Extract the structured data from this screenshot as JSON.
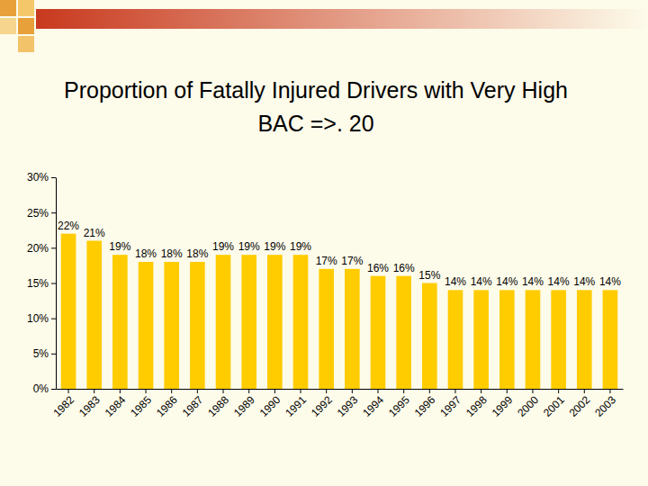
{
  "chart_data": {
    "type": "bar",
    "title": "Proportion of Fatally Injured Drivers with Very High BAC =>. 20",
    "categories": [
      "1982",
      "1983",
      "1984",
      "1985",
      "1986",
      "1987",
      "1988",
      "1989",
      "1990",
      "1991",
      "1992",
      "1993",
      "1994",
      "1995",
      "1996",
      "1997",
      "1998",
      "1999",
      "2000",
      "2001",
      "2002",
      "2003"
    ],
    "values": [
      22,
      21,
      19,
      18,
      18,
      18,
      19,
      19,
      19,
      19,
      17,
      17,
      16,
      16,
      15,
      14,
      14,
      14,
      14,
      14,
      14,
      14
    ],
    "value_labels": [
      "22%",
      "21%",
      "19%",
      "18%",
      "18%",
      "18%",
      "19%",
      "19%",
      "19%",
      "19%",
      "17%",
      "17%",
      "16%",
      "16%",
      "15%",
      "14%",
      "14%",
      "14%",
      "14%",
      "14%",
      "14%",
      "14%"
    ],
    "color": "#ffcc00",
    "ylim": [
      0,
      30
    ],
    "yticks": [
      {
        "value": 0,
        "label": "0%"
      },
      {
        "value": 5,
        "label": "5%"
      },
      {
        "value": 10,
        "label": "10%"
      },
      {
        "value": 15,
        "label": "15%"
      },
      {
        "value": 20,
        "label": "20%"
      },
      {
        "value": 25,
        "label": "25%"
      },
      {
        "value": 30,
        "label": "30%"
      }
    ],
    "grid": false,
    "data_labels": true
  }
}
